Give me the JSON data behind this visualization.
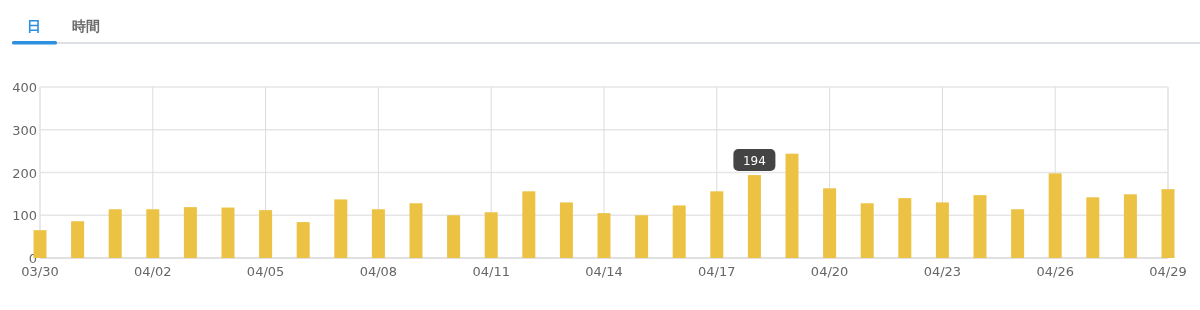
{
  "chart_data": {
    "type": "bar",
    "annotations": [
      "日",
      "時間"
    ],
    "categories": [
      "03/30",
      null,
      null,
      "04/02",
      null,
      null,
      "04/05",
      null,
      null,
      "04/08",
      null,
      null,
      "04/11",
      null,
      null,
      "04/14",
      null,
      null,
      "04/17",
      null,
      null,
      "04/20",
      null,
      null,
      "04/23",
      null,
      null,
      "04/26",
      null,
      null,
      "04/29"
    ],
    "values": [
      65,
      86,
      114,
      114,
      119,
      118,
      112,
      84,
      137,
      114,
      128,
      100,
      107,
      156,
      130,
      105,
      100,
      123,
      156,
      194,
      244,
      163,
      128,
      140,
      130,
      147,
      114,
      198,
      142,
      149,
      161
    ],
    "value_labels": [
      null,
      null,
      null,
      null,
      null,
      null,
      null,
      null,
      null,
      null,
      null,
      null,
      null,
      null,
      null,
      null,
      null,
      null,
      null,
      "194",
      null,
      null,
      null,
      null,
      null,
      null,
      null,
      null,
      null,
      null,
      null
    ],
    "color": "#ecc244",
    "ylim": [
      0,
      400
    ],
    "yticks": [
      0,
      100,
      200,
      300,
      400
    ],
    "grid": true
  }
}
